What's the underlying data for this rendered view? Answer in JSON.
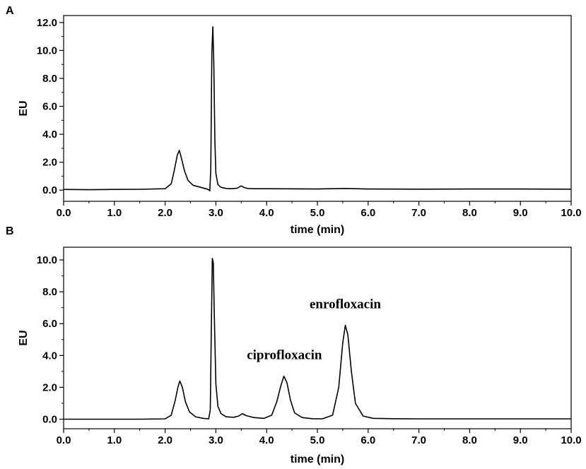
{
  "chart_data": [
    {
      "type": "line",
      "panel_label": "A",
      "xlabel": "time (min)",
      "ylabel": "EU",
      "xlim": [
        0,
        10
      ],
      "ylim": [
        -0.8,
        12.5
      ],
      "x_ticks": [
        "0.0",
        "1.0",
        "2.0",
        "3.0",
        "4.0",
        "5.0",
        "6.0",
        "7.0",
        "8.0",
        "9.0",
        "10.0"
      ],
      "y_ticks": [
        "0.0",
        "2.0",
        "4.0",
        "6.0",
        "8.0",
        "10.0",
        "12.0"
      ],
      "series": [
        {
          "x": [
            0.0,
            0.5,
            1.0,
            1.5,
            2.0,
            2.12,
            2.18,
            2.24,
            2.28,
            2.32,
            2.38,
            2.45,
            2.55,
            2.7,
            2.85,
            2.88,
            2.9,
            2.92,
            2.94,
            2.96,
            2.98,
            3.0,
            3.04,
            3.1,
            3.2,
            3.3,
            3.42,
            3.5,
            3.55,
            3.62,
            3.75,
            4.0,
            5.0,
            5.55,
            6.0,
            7.0,
            8.0,
            9.0,
            10.0
          ],
          "y": [
            0.05,
            0.03,
            0.05,
            0.06,
            0.1,
            0.45,
            1.4,
            2.5,
            2.85,
            2.3,
            1.4,
            0.7,
            0.35,
            0.2,
            0.05,
            -0.05,
            1.5,
            9.8,
            11.7,
            9.0,
            3.5,
            1.2,
            0.4,
            0.2,
            0.12,
            0.1,
            0.14,
            0.3,
            0.2,
            0.12,
            0.1,
            0.1,
            0.08,
            0.12,
            0.08,
            0.07,
            0.08,
            0.08,
            0.07
          ]
        }
      ]
    },
    {
      "type": "line",
      "panel_label": "B",
      "xlabel": "time (min)",
      "ylabel": "EU",
      "xlim": [
        0,
        10
      ],
      "ylim": [
        -0.6,
        10.8
      ],
      "x_ticks": [
        "0.0",
        "1.0",
        "2.0",
        "3.0",
        "4.0",
        "5.0",
        "6.0",
        "7.0",
        "8.0",
        "9.0",
        "10.0"
      ],
      "y_ticks": [
        "0.0",
        "2.0",
        "4.0",
        "6.0",
        "8.0",
        "10.0"
      ],
      "annotations": [
        {
          "text": "ciprofloxacin",
          "x": 4.35,
          "y": 2.7
        },
        {
          "text": "enrofloxacin",
          "x": 5.55,
          "y": 5.9
        }
      ],
      "series": [
        {
          "x": [
            0.0,
            0.5,
            1.0,
            1.5,
            2.0,
            2.12,
            2.2,
            2.25,
            2.29,
            2.34,
            2.4,
            2.48,
            2.6,
            2.75,
            2.86,
            2.89,
            2.91,
            2.93,
            2.95,
            2.97,
            3.0,
            3.04,
            3.1,
            3.2,
            3.35,
            3.45,
            3.52,
            3.6,
            3.75,
            3.95,
            4.1,
            4.2,
            4.28,
            4.34,
            4.4,
            4.47,
            4.55,
            4.7,
            4.9,
            5.1,
            5.3,
            5.42,
            5.5,
            5.55,
            5.6,
            5.67,
            5.75,
            5.9,
            6.1,
            6.5,
            7.0,
            8.0,
            9.0,
            10.0
          ],
          "y": [
            0.0,
            0.0,
            0.0,
            0.0,
            0.02,
            0.25,
            1.2,
            2.0,
            2.4,
            2.0,
            1.1,
            0.45,
            0.15,
            0.05,
            0.02,
            0.6,
            5.5,
            10.1,
            9.8,
            6.5,
            2.2,
            0.8,
            0.35,
            0.15,
            0.12,
            0.2,
            0.35,
            0.22,
            0.1,
            0.05,
            0.25,
            1.1,
            2.1,
            2.7,
            2.3,
            1.2,
            0.4,
            0.1,
            0.03,
            0.02,
            0.25,
            2.0,
            4.8,
            5.9,
            5.3,
            3.0,
            1.0,
            0.2,
            0.05,
            0.03,
            0.02,
            0.02,
            0.02,
            0.02
          ]
        }
      ]
    }
  ]
}
